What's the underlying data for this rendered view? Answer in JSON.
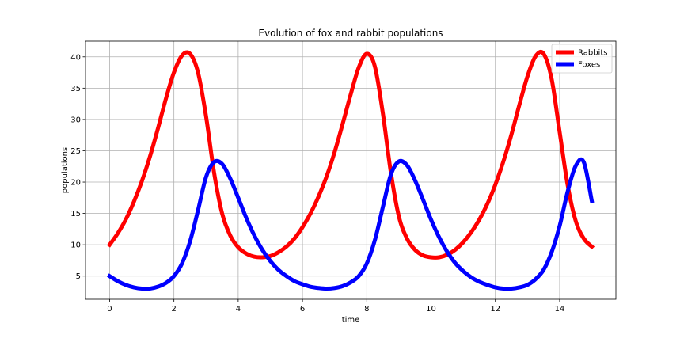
{
  "chart_data": {
    "type": "line",
    "title": "Evolution of fox and rabbit populations",
    "xlabel": "time",
    "ylabel": "populations",
    "xlim": [
      -0.75,
      15.75
    ],
    "ylim": [
      1.3,
      42.5
    ],
    "xticks": [
      0,
      2,
      4,
      6,
      8,
      10,
      12,
      14
    ],
    "yticks": [
      5,
      10,
      15,
      20,
      25,
      30,
      35,
      40
    ],
    "grid": true,
    "legend_position": "top-right",
    "series": [
      {
        "name": "Rabbits",
        "color": "#ff0000",
        "x": [
          0,
          0.25,
          0.5,
          0.75,
          1.0,
          1.25,
          1.5,
          1.75,
          2.0,
          2.25,
          2.5,
          2.75,
          3.0,
          3.25,
          3.5,
          3.75,
          4.0,
          4.25,
          4.5,
          4.75,
          5.0,
          5.25,
          5.5,
          5.75,
          6.0,
          6.25,
          6.5,
          6.75,
          7.0,
          7.25,
          7.5,
          7.75,
          8.0,
          8.25,
          8.5,
          8.75,
          9.0,
          9.25,
          9.5,
          9.75,
          10.0,
          10.25,
          10.5,
          10.75,
          11.0,
          11.25,
          11.5,
          11.75,
          12.0,
          12.25,
          12.5,
          12.75,
          13.0,
          13.25,
          13.5,
          13.75,
          14.0,
          14.25,
          14.5,
          14.75,
          15.0
        ],
        "y": [
          10.0,
          11.8,
          14.0,
          16.8,
          20.1,
          24.0,
          28.5,
          33.3,
          37.5,
          40.2,
          40.5,
          37.5,
          30.5,
          21.5,
          15.0,
          11.5,
          9.6,
          8.6,
          8.1,
          8.0,
          8.2,
          8.8,
          9.7,
          11.0,
          12.8,
          15.0,
          17.7,
          20.9,
          24.8,
          29.3,
          34.0,
          38.3,
          40.5,
          38.5,
          31.0,
          21.5,
          14.5,
          11.0,
          9.2,
          8.3,
          8.0,
          8.0,
          8.4,
          9.2,
          10.4,
          12.0,
          14.0,
          16.5,
          19.6,
          23.3,
          27.6,
          32.4,
          36.9,
          40.1,
          40.5,
          36.5,
          28.0,
          19.5,
          13.8,
          11.0,
          9.7
        ]
      },
      {
        "name": "Foxes",
        "color": "#0000ff",
        "x": [
          0,
          0.25,
          0.5,
          0.75,
          1.0,
          1.25,
          1.5,
          1.75,
          2.0,
          2.25,
          2.5,
          2.75,
          3.0,
          3.25,
          3.5,
          3.75,
          4.0,
          4.25,
          4.5,
          4.75,
          5.0,
          5.25,
          5.5,
          5.75,
          6.0,
          6.25,
          6.5,
          6.75,
          7.0,
          7.25,
          7.5,
          7.75,
          8.0,
          8.25,
          8.5,
          8.75,
          9.0,
          9.25,
          9.5,
          9.75,
          10.0,
          10.25,
          10.5,
          10.75,
          11.0,
          11.25,
          11.5,
          11.75,
          12.0,
          12.25,
          12.5,
          12.75,
          13.0,
          13.25,
          13.5,
          13.75,
          14.0,
          14.25,
          14.5,
          14.75,
          15.0
        ],
        "y": [
          5.0,
          4.2,
          3.6,
          3.2,
          3.0,
          3.0,
          3.3,
          3.9,
          5.0,
          7.0,
          10.5,
          15.5,
          20.8,
          23.2,
          22.9,
          20.6,
          17.5,
          14.3,
          11.5,
          9.2,
          7.4,
          6.0,
          5.0,
          4.2,
          3.7,
          3.3,
          3.1,
          3.0,
          3.1,
          3.4,
          4.0,
          5.0,
          7.0,
          10.7,
          16.0,
          21.2,
          23.3,
          22.7,
          20.3,
          17.2,
          14.0,
          11.2,
          8.9,
          7.1,
          5.8,
          4.8,
          4.1,
          3.6,
          3.2,
          3.0,
          3.0,
          3.2,
          3.6,
          4.5,
          6.0,
          8.8,
          13.0,
          18.5,
          22.6,
          23.2,
          17.0
        ]
      }
    ]
  }
}
